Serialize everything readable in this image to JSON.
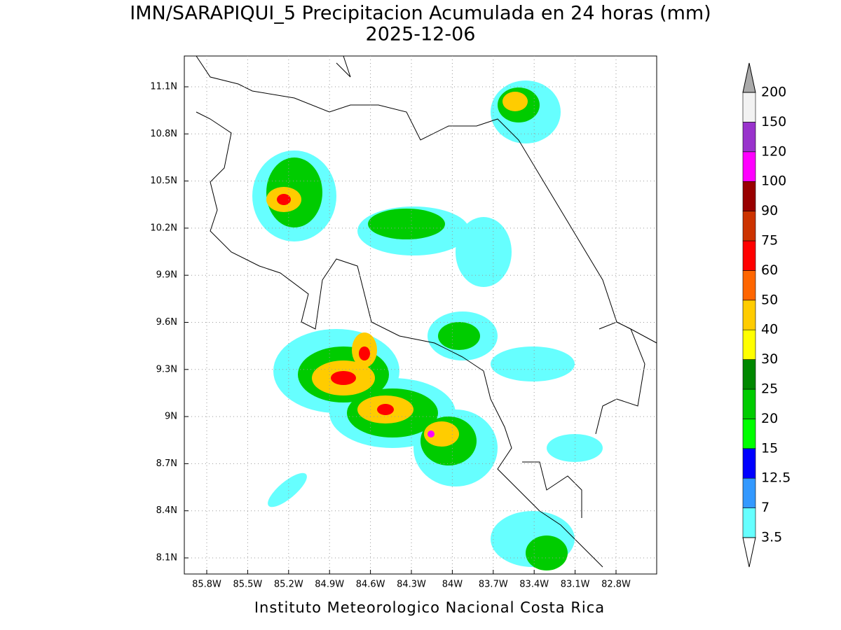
{
  "title": "IMN/SARAPIQUI_5 Precipitacion Acumulada en 24 horas (mm)",
  "date": "2025-12-06",
  "lon_labels": [
    "85.8W",
    "85.5W",
    "85.2W",
    "84.9W",
    "84.6W",
    "84.3W",
    "84W",
    "83.7W",
    "83.4W",
    "83.1W",
    "82.8W"
  ],
  "lat_labels": [
    "11.1N",
    "10.8N",
    "10.5N",
    "10.2N",
    "9.9N",
    "9.6N",
    "9.3N",
    "9N",
    "8.7N",
    "8.4N",
    "8.1N"
  ],
  "colorbar": {
    "levels": [
      3.5,
      7,
      12.5,
      15,
      20,
      25,
      30,
      40,
      50,
      60,
      75,
      90,
      100,
      120,
      150,
      200
    ],
    "colors": [
      "#66ffff",
      "#3399ff",
      "#0000ff",
      "#00ff00",
      "#00cc00",
      "#008800",
      "#ffff00",
      "#ffcc00",
      "#ff6600",
      "#ff0000",
      "#cc3300",
      "#990000",
      "#ff00ff",
      "#9933cc",
      "#f2f2f2"
    ],
    "over_color": "#aaaaaa",
    "under_color": "#ffffff"
  },
  "footer": "Instituto Meteorologico Nacional Costa Rica"
}
